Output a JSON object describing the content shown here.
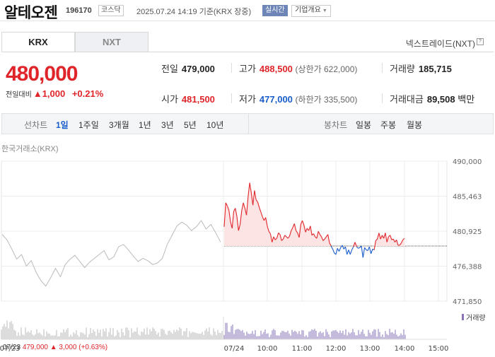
{
  "header": {
    "name": "알테오젠",
    "code": "196170",
    "market": "코스닥",
    "timestamp": "2025.07.24 14:19 기준(KRX 장중)",
    "realtime": "실시간",
    "overview": "기업개요"
  },
  "tabs": {
    "active": "KRX",
    "inactive": "NXT",
    "nxt_link": "넥스트레이드(NXT)",
    "help": "?"
  },
  "price": {
    "current": "480,000",
    "diff_label": "전일대비",
    "diff_value": "▲1,000",
    "diff_pct": "+0.21%"
  },
  "quote": {
    "prev_close_label": "전일",
    "prev_close": "479,000",
    "high_label": "고가",
    "high": "488,500",
    "upper_limit": "(상한가 622,000)",
    "volume_label": "거래량",
    "volume": "185,715",
    "open_label": "시가",
    "open": "481,500",
    "low_label": "저가",
    "low": "477,000",
    "lower_limit": "(하한가 335,500)",
    "value_label": "거래대금",
    "value": "89,508",
    "value_unit": "백만"
  },
  "periods": {
    "line_label": "선차트",
    "line_items": [
      "1일",
      "1주일",
      "3개월",
      "1년",
      "3년",
      "5년",
      "10년"
    ],
    "selected": "1일",
    "candle_label": "봉차트",
    "candle_items": [
      "일봉",
      "주봉",
      "월봉"
    ]
  },
  "chart_source": "한국거래소(KRX)",
  "volume_legend": "거래량",
  "footer": {
    "date": "07/23",
    "close": "479,000",
    "change": "▲ 3,000",
    "change_pct": "(+0.63%)"
  },
  "colors": {
    "up": "#e0252a",
    "down": "#1a5dcc",
    "prev_line": "#bbbbbb",
    "up_fill": "#fde4e4"
  },
  "chart_data": {
    "type": "line",
    "y_ticks": [
      "490,000",
      "485,463",
      "480,925",
      "476,388",
      "471,850"
    ],
    "ylim": [
      471850,
      490000
    ],
    "x_ticks": [
      "07/23",
      "07/24",
      "10:00",
      "11:00",
      "12:00",
      "13:00",
      "14:00",
      "15:00"
    ],
    "reference": 479000,
    "prev_day": [
      480500,
      479800,
      478600,
      477300,
      477900,
      476400,
      477100,
      475600,
      474500,
      473800,
      474900,
      476100,
      475000,
      476600,
      477300,
      477800,
      477000,
      476200,
      476900,
      477400,
      477900,
      478400,
      477200,
      477600,
      478900,
      479200,
      478500,
      477700,
      477000,
      477400,
      477100,
      476600,
      476800,
      477400,
      479200,
      480400,
      481600,
      482100,
      481700,
      481000,
      481500,
      482300,
      481200,
      481800,
      480700,
      479500
    ],
    "today": [
      481500,
      484600,
      484200,
      483600,
      482100,
      481300,
      483500,
      483900,
      482800,
      481000,
      481800,
      483600,
      484600,
      483900,
      483000,
      485400,
      487200,
      485900,
      484300,
      486200,
      485000,
      484700,
      484000,
      483400,
      482800,
      482300,
      482700,
      481600,
      480900,
      480600,
      479500,
      480200,
      479800,
      480000,
      480700,
      480500,
      479700,
      479900,
      480400,
      480200,
      480000,
      480300,
      481000,
      481400,
      481900,
      481000,
      480700,
      480100,
      481800,
      482300,
      481700,
      480800,
      481300,
      481000,
      481600,
      480400,
      480600,
      480200,
      480000,
      480900,
      480500,
      480200,
      479700,
      479900,
      480200,
      480500,
      479400,
      479000,
      478600,
      478100,
      477900,
      478700,
      478300,
      478800,
      479100,
      478600,
      478900,
      477900,
      478500,
      477900,
      478500,
      478900,
      479500,
      478900,
      478700,
      478800,
      479000,
      477500,
      478800,
      478500,
      478400,
      478900,
      478000,
      478600,
      478500,
      479700,
      479900,
      480700,
      479900,
      480400,
      480000,
      480700,
      479500,
      480200,
      480400,
      479800,
      479900,
      479500,
      479800,
      479100,
      479100,
      479400,
      479800,
      480000
    ]
  }
}
